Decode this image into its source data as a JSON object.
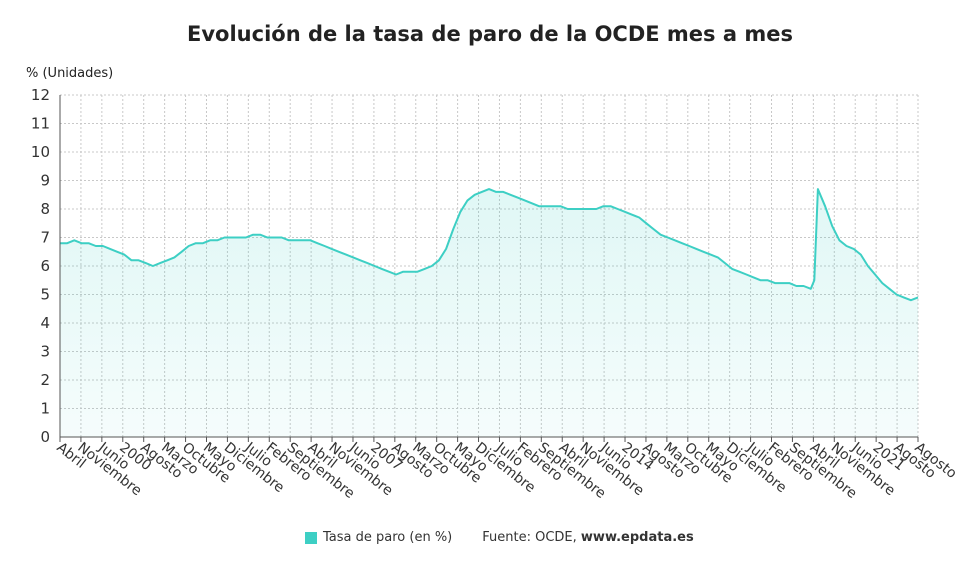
{
  "chart_data": {
    "type": "area",
    "title": "Evolución de la tasa de paro de la OCDE mes a mes",
    "ylabel": "% (Unidades)",
    "ylim": [
      0,
      12
    ],
    "yticks": [
      0,
      1,
      2,
      3,
      4,
      5,
      6,
      7,
      8,
      9,
      10,
      11,
      12
    ],
    "grid": true,
    "xtick_labels": [
      "Abril",
      "Noviembre",
      "Junio",
      "2000",
      "Agosto",
      "Marzo",
      "Octubre",
      "Mayo",
      "Diciembre",
      "Julio",
      "Febrero",
      "Septiembre",
      "Abril",
      "Noviembre",
      "Junio",
      "2007",
      "Agosto",
      "Marzo",
      "Octubre",
      "Mayo",
      "Diciembre",
      "Julio",
      "Febrero",
      "Septiembre",
      "Abril",
      "Noviembre",
      "Junio",
      "2014",
      "Agosto",
      "Marzo",
      "Octubre",
      "Mayo",
      "Diciembre",
      "Julio",
      "Febrero",
      "Septiembre",
      "Abril",
      "Noviembre",
      "Junio",
      "2021",
      "Agosto",
      "Agosto"
    ],
    "series": [
      {
        "name": "Tasa de paro (en %)",
        "color": "#3dcfc4",
        "points": [
          [
            0,
            6.8
          ],
          [
            1,
            6.8
          ],
          [
            2,
            6.9
          ],
          [
            3,
            6.8
          ],
          [
            4,
            6.8
          ],
          [
            5,
            6.7
          ],
          [
            6,
            6.7
          ],
          [
            7,
            6.6
          ],
          [
            8,
            6.5
          ],
          [
            9,
            6.4
          ],
          [
            10,
            6.2
          ],
          [
            11,
            6.2
          ],
          [
            12,
            6.1
          ],
          [
            13,
            6.0
          ],
          [
            14,
            6.1
          ],
          [
            15,
            6.2
          ],
          [
            16,
            6.3
          ],
          [
            17,
            6.5
          ],
          [
            18,
            6.7
          ],
          [
            19,
            6.8
          ],
          [
            20,
            6.8
          ],
          [
            21,
            6.9
          ],
          [
            22,
            6.9
          ],
          [
            23,
            7.0
          ],
          [
            24,
            7.0
          ],
          [
            25,
            7.0
          ],
          [
            26,
            7.0
          ],
          [
            27,
            7.1
          ],
          [
            28,
            7.1
          ],
          [
            29,
            7.0
          ],
          [
            30,
            7.0
          ],
          [
            31,
            7.0
          ],
          [
            32,
            6.9
          ],
          [
            33,
            6.9
          ],
          [
            34,
            6.9
          ],
          [
            35,
            6.9
          ],
          [
            36,
            6.8
          ],
          [
            37,
            6.7
          ],
          [
            38,
            6.6
          ],
          [
            39,
            6.5
          ],
          [
            40,
            6.4
          ],
          [
            41,
            6.3
          ],
          [
            42,
            6.2
          ],
          [
            43,
            6.1
          ],
          [
            44,
            6.0
          ],
          [
            45,
            5.9
          ],
          [
            46,
            5.8
          ],
          [
            47,
            5.7
          ],
          [
            48,
            5.8
          ],
          [
            49,
            5.8
          ],
          [
            50,
            5.8
          ],
          [
            51,
            5.9
          ],
          [
            52,
            6.0
          ],
          [
            53,
            6.2
          ],
          [
            54,
            6.6
          ],
          [
            55,
            7.3
          ],
          [
            56,
            7.9
          ],
          [
            57,
            8.3
          ],
          [
            58,
            8.5
          ],
          [
            59,
            8.6
          ],
          [
            60,
            8.7
          ],
          [
            61,
            8.6
          ],
          [
            62,
            8.6
          ],
          [
            63,
            8.5
          ],
          [
            64,
            8.4
          ],
          [
            65,
            8.3
          ],
          [
            66,
            8.2
          ],
          [
            67,
            8.1
          ],
          [
            68,
            8.1
          ],
          [
            69,
            8.1
          ],
          [
            70,
            8.1
          ],
          [
            71,
            8.0
          ],
          [
            72,
            8.0
          ],
          [
            73,
            8.0
          ],
          [
            74,
            8.0
          ],
          [
            75,
            8.0
          ],
          [
            76,
            8.1
          ],
          [
            77,
            8.1
          ],
          [
            78,
            8.0
          ],
          [
            79,
            7.9
          ],
          [
            80,
            7.8
          ],
          [
            81,
            7.7
          ],
          [
            82,
            7.5
          ],
          [
            83,
            7.3
          ],
          [
            84,
            7.1
          ],
          [
            85,
            7.0
          ],
          [
            86,
            6.9
          ],
          [
            87,
            6.8
          ],
          [
            88,
            6.7
          ],
          [
            89,
            6.6
          ],
          [
            90,
            6.5
          ],
          [
            91,
            6.4
          ],
          [
            92,
            6.3
          ],
          [
            93,
            6.1
          ],
          [
            94,
            5.9
          ],
          [
            95,
            5.8
          ],
          [
            96,
            5.7
          ],
          [
            97,
            5.6
          ],
          [
            98,
            5.5
          ],
          [
            99,
            5.5
          ],
          [
            100,
            5.4
          ],
          [
            101,
            5.4
          ],
          [
            102,
            5.4
          ],
          [
            103,
            5.3
          ],
          [
            104,
            5.3
          ],
          [
            105,
            5.2
          ],
          [
            105.5,
            5.5
          ],
          [
            106,
            8.7
          ],
          [
            107,
            8.1
          ],
          [
            108,
            7.4
          ],
          [
            109,
            6.9
          ],
          [
            110,
            6.7
          ],
          [
            111,
            6.6
          ],
          [
            112,
            6.4
          ],
          [
            113,
            6.0
          ],
          [
            114,
            5.7
          ],
          [
            115,
            5.4
          ],
          [
            116,
            5.2
          ],
          [
            117,
            5.0
          ],
          [
            118,
            4.9
          ],
          [
            119,
            4.8
          ],
          [
            120,
            4.9
          ]
        ]
      }
    ],
    "xlim": [
      0,
      120
    ]
  },
  "legend": {
    "label": "Tasa de paro (en %)"
  },
  "source": {
    "prefix": "Fuente: OCDE,",
    "site": "www.epdata.es"
  }
}
